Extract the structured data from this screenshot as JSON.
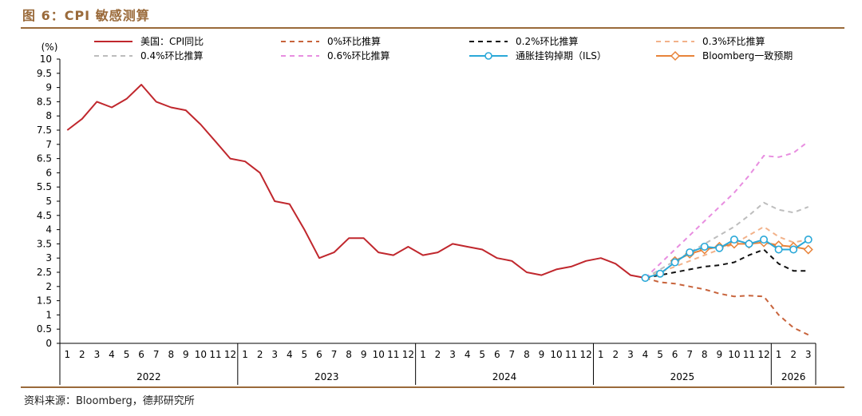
{
  "figure": {
    "title": "图 6：CPI 敏感测算",
    "source": "资料来源：Bloomberg，德邦研究所"
  },
  "chart_data": {
    "type": "line",
    "ylabel": "(%)",
    "ylim": [
      0,
      10
    ],
    "yticks": [
      "0",
      "0.5",
      "1",
      "1.5",
      "2",
      "2.5",
      "3",
      "3.5",
      "4",
      "4.5",
      "5",
      "5.5",
      "6",
      "6.5",
      "7",
      "7.5",
      "8",
      "8.5",
      "9",
      "9.5",
      "10"
    ],
    "x_month_labels": [
      "1",
      "2",
      "3",
      "4",
      "5",
      "6",
      "7",
      "8",
      "9",
      "10",
      "11",
      "12",
      "1",
      "2",
      "3",
      "4",
      "5",
      "6",
      "7",
      "8",
      "9",
      "10",
      "11",
      "12",
      "1",
      "2",
      "3",
      "4",
      "5",
      "6",
      "7",
      "8",
      "9",
      "10",
      "11",
      "12",
      "1",
      "2",
      "3",
      "4",
      "5",
      "6",
      "7",
      "8",
      "9",
      "10",
      "11",
      "12",
      "1",
      "2",
      "3"
    ],
    "year_groups": [
      {
        "label": "2022",
        "months": 12
      },
      {
        "label": "2023",
        "months": 12
      },
      {
        "label": "2024",
        "months": 12
      },
      {
        "label": "2025",
        "months": 12
      },
      {
        "label": "2026",
        "months": 3
      }
    ],
    "grid": false,
    "legend_position": "top",
    "series": [
      {
        "name": "美国：CPI同比",
        "color": "#c0272d",
        "style": "solid",
        "start_index": 0,
        "values": [
          7.5,
          7.9,
          8.5,
          8.3,
          8.6,
          9.1,
          8.5,
          8.3,
          8.2,
          7.7,
          7.1,
          6.5,
          6.4,
          6.0,
          5.0,
          4.9,
          4.0,
          3.0,
          3.2,
          3.7,
          3.7,
          3.2,
          3.1,
          3.4,
          3.1,
          3.2,
          3.5,
          3.4,
          3.3,
          3.0,
          2.9,
          2.5,
          2.4,
          2.6,
          2.7,
          2.9,
          3.0,
          2.8,
          2.4,
          2.3
        ]
      },
      {
        "name": "0%环比推算",
        "color": "#c8643c",
        "style": "dash",
        "start_index": 39,
        "values": [
          2.3,
          2.15,
          2.1,
          2.0,
          1.9,
          1.75,
          1.65,
          1.68,
          1.65,
          1.0,
          0.55,
          0.3
        ]
      },
      {
        "name": "0.2%环比推算",
        "color": "#111111",
        "style": "dash",
        "start_index": 39,
        "values": [
          2.3,
          2.4,
          2.5,
          2.6,
          2.7,
          2.75,
          2.85,
          3.1,
          3.3,
          2.8,
          2.55,
          2.55
        ]
      },
      {
        "name": "0.3%环比推算",
        "color": "#f2b28a",
        "style": "dash",
        "start_index": 39,
        "values": [
          2.3,
          2.5,
          2.7,
          2.9,
          3.1,
          3.3,
          3.5,
          3.8,
          4.1,
          3.75,
          3.55,
          3.65
        ]
      },
      {
        "name": "0.4%环比推算",
        "color": "#bdbdbd",
        "style": "dash",
        "start_index": 39,
        "values": [
          2.3,
          2.6,
          2.9,
          3.2,
          3.5,
          3.8,
          4.1,
          4.5,
          4.95,
          4.7,
          4.6,
          4.8
        ]
      },
      {
        "name": "0.6%环比推算",
        "color": "#e88ee0",
        "style": "dash",
        "start_index": 39,
        "values": [
          2.3,
          2.8,
          3.3,
          3.8,
          4.3,
          4.8,
          5.3,
          5.9,
          6.6,
          6.55,
          6.7,
          7.1
        ]
      },
      {
        "name": "通胀挂钩掉期（ILS）",
        "color": "#2aa8d8",
        "style": "solid",
        "marker": "circle",
        "start_index": 39,
        "values": [
          2.3,
          2.45,
          2.85,
          3.2,
          3.4,
          3.35,
          3.65,
          3.5,
          3.65,
          3.3,
          3.3,
          3.65
        ]
      },
      {
        "name": "Bloomberg一致预期",
        "color": "#e8833a",
        "style": "solid",
        "marker": "diamond",
        "start_index": 41,
        "values": [
          2.9,
          3.15,
          3.3,
          3.4,
          3.5,
          3.5,
          3.55,
          3.45,
          3.4,
          3.3
        ]
      }
    ]
  }
}
